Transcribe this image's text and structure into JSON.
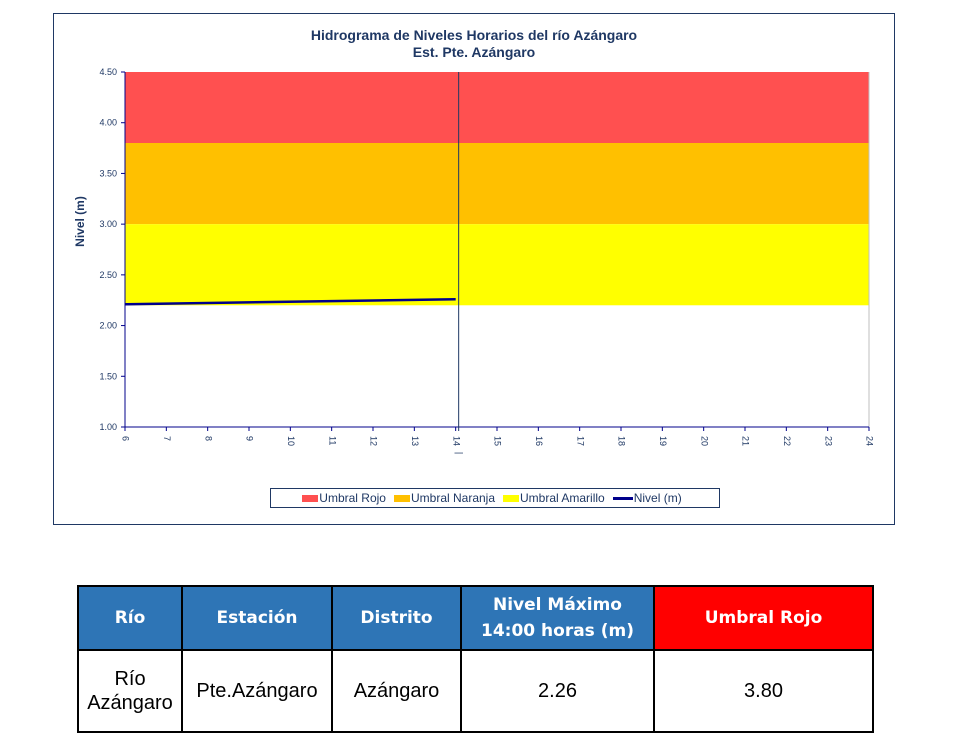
{
  "chart_data": {
    "type": "line",
    "title": "Hidrograma de Niveles Horarios del río Azángaro",
    "subtitle": "Est. Pte. Azángaro",
    "ylabel": "Nivel (m)",
    "xlabel": "",
    "marker_label": "|",
    "xlim": [
      6,
      24
    ],
    "ylim": [
      1.0,
      4.5
    ],
    "x_ticks": [
      6,
      7,
      8,
      9,
      10,
      11,
      12,
      13,
      14,
      15,
      16,
      17,
      18,
      19,
      20,
      21,
      22,
      23,
      24
    ],
    "y_ticks": [
      "1.00",
      "1.50",
      "2.00",
      "2.50",
      "3.00",
      "3.50",
      "4.00",
      "4.50"
    ],
    "current_hour": 14,
    "bands": [
      {
        "name": "Umbral Rojo",
        "from": 3.8,
        "to": 4.5,
        "color": "#ff5050"
      },
      {
        "name": "Umbral Naranja",
        "from": 3.0,
        "to": 3.8,
        "color": "#ffc000"
      },
      {
        "name": "Umbral Amarillo",
        "from": 2.2,
        "to": 3.0,
        "color": "#ffff00"
      }
    ],
    "series": [
      {
        "name": "Nivel (m)",
        "color": "#00008b",
        "x": [
          6,
          14
        ],
        "y": [
          2.21,
          2.26
        ]
      }
    ],
    "legend_position": "bottom",
    "grid": false
  },
  "legend": [
    {
      "label": "Umbral Rojo",
      "color": "#ff5050",
      "kind": "box"
    },
    {
      "label": "Umbral Naranja",
      "color": "#ffc000",
      "kind": "box"
    },
    {
      "label": "Umbral Amarillo",
      "color": "#ffff00",
      "kind": "box"
    },
    {
      "label": "Nivel (m)",
      "color": "#00008b",
      "kind": "line"
    }
  ],
  "table": {
    "headers": [
      "Río",
      "Estación",
      "Distrito",
      "Nivel Máximo 14:00 horas (m)",
      "Umbral Rojo"
    ],
    "row": [
      "Río Azángaro",
      "Pte.Azángaro",
      "Azángaro",
      "2.26",
      "3.80"
    ]
  }
}
